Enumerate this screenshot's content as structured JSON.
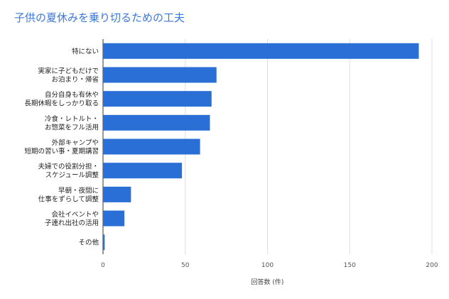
{
  "chart_data": {
    "type": "bar",
    "orientation": "horizontal",
    "title": "子供の夏休みを乗り切るための工夫",
    "xlabel": "回答数 (件)",
    "ylabel": "",
    "xlim": [
      0,
      200
    ],
    "xticks": [
      "0",
      "50",
      "100",
      "150",
      "200"
    ],
    "grid": "vertical",
    "legend": "none",
    "bar_color": "#2a6fd6",
    "categories": [
      [
        "特にない"
      ],
      [
        "実家に子どもだけで",
        "お泊まり・帰省"
      ],
      [
        "自分自身も有休や",
        "長期休暇をしっかり取る"
      ],
      [
        "冷食・レトルト・",
        "お惣菜をフル活用"
      ],
      [
        "外部キャンプや",
        "短期の習い事・夏期講習"
      ],
      [
        "夫婦での役割分担・",
        "スケジュール調整"
      ],
      [
        "早朝・夜間に",
        "仕事をずらして調整"
      ],
      [
        "会社イベントや",
        "子連れ出社の活用"
      ],
      [
        "その他"
      ]
    ],
    "values": [
      192,
      69,
      66,
      65,
      59,
      48,
      17,
      13,
      1
    ]
  }
}
